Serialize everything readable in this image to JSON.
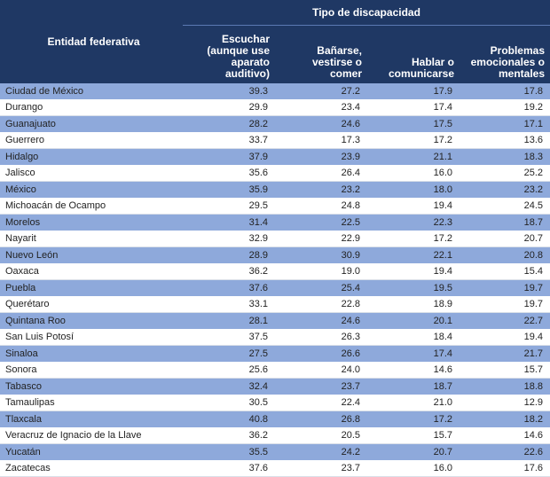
{
  "table": {
    "group_header": "Tipo de discapacidad",
    "entity_header": "Entidad federativa",
    "columns": [
      "Escuchar (aunque use aparato auditivo)",
      "Bañarse, vestirse o comer",
      "Hablar o comunicarse",
      "Problemas emocionales o mentales"
    ],
    "rows": [
      {
        "entity": "Ciudad de México",
        "values": [
          "39.3",
          "27.2",
          "17.9",
          "17.8"
        ]
      },
      {
        "entity": "Durango",
        "values": [
          "29.9",
          "23.4",
          "17.4",
          "19.2"
        ]
      },
      {
        "entity": "Guanajuato",
        "values": [
          "28.2",
          "24.6",
          "17.5",
          "17.1"
        ]
      },
      {
        "entity": "Guerrero",
        "values": [
          "33.7",
          "17.3",
          "17.2",
          "13.6"
        ]
      },
      {
        "entity": "Hidalgo",
        "values": [
          "37.9",
          "23.9",
          "21.1",
          "18.3"
        ]
      },
      {
        "entity": "Jalisco",
        "values": [
          "35.6",
          "26.4",
          "16.0",
          "25.2"
        ]
      },
      {
        "entity": "México",
        "values": [
          "35.9",
          "23.2",
          "18.0",
          "23.2"
        ]
      },
      {
        "entity": "Michoacán de Ocampo",
        "values": [
          "29.5",
          "24.8",
          "19.4",
          "24.5"
        ]
      },
      {
        "entity": "Morelos",
        "values": [
          "31.4",
          "22.5",
          "22.3",
          "18.7"
        ]
      },
      {
        "entity": "Nayarit",
        "values": [
          "32.9",
          "22.9",
          "17.2",
          "20.7"
        ]
      },
      {
        "entity": "Nuevo León",
        "values": [
          "28.9",
          "30.9",
          "22.1",
          "20.8"
        ]
      },
      {
        "entity": "Oaxaca",
        "values": [
          "36.2",
          "19.0",
          "19.4",
          "15.4"
        ]
      },
      {
        "entity": "Puebla",
        "values": [
          "37.6",
          "25.4",
          "19.5",
          "19.7"
        ]
      },
      {
        "entity": "Querétaro",
        "values": [
          "33.1",
          "22.8",
          "18.9",
          "19.7"
        ]
      },
      {
        "entity": "Quintana Roo",
        "values": [
          "28.1",
          "24.6",
          "20.1",
          "22.7"
        ]
      },
      {
        "entity": "San Luis Potosí",
        "values": [
          "37.5",
          "26.3",
          "18.4",
          "19.4"
        ]
      },
      {
        "entity": "Sinaloa",
        "values": [
          "27.5",
          "26.6",
          "17.4",
          "21.7"
        ]
      },
      {
        "entity": "Sonora",
        "values": [
          "25.6",
          "24.0",
          "14.6",
          "15.7"
        ]
      },
      {
        "entity": "Tabasco",
        "values": [
          "32.4",
          "23.7",
          "18.7",
          "18.8"
        ]
      },
      {
        "entity": "Tamaulipas",
        "values": [
          "30.5",
          "22.4",
          "21.0",
          "12.9"
        ]
      },
      {
        "entity": "Tlaxcala",
        "values": [
          "40.8",
          "26.8",
          "17.2",
          "18.2"
        ]
      },
      {
        "entity": "Veracruz de Ignacio de la Llave",
        "values": [
          "36.2",
          "20.5",
          "15.7",
          "14.6"
        ]
      },
      {
        "entity": "Yucatán",
        "values": [
          "35.5",
          "24.2",
          "20.7",
          "22.6"
        ]
      },
      {
        "entity": "Zacatecas",
        "values": [
          "37.6",
          "23.7",
          "16.0",
          "17.6"
        ]
      }
    ]
  },
  "colors": {
    "header_background": "#1f3864",
    "header_text": "#ffffff",
    "shaded_row": "#8ea9db",
    "plain_row": "#ffffff"
  }
}
